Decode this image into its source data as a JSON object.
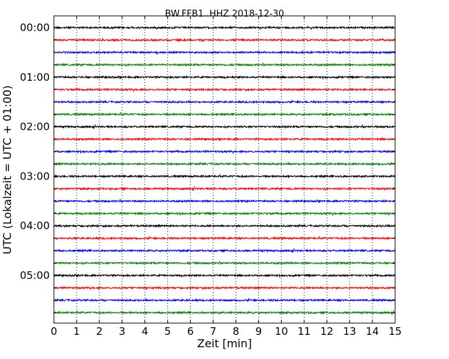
{
  "chart_data": {
    "type": "line",
    "title": "BW.FFB1..HHZ 2018-12-30",
    "xlabel": "Zeit  [min]",
    "ylabel": "UTC (Lokalzeit = UTC + 01:00)",
    "xlim": [
      0,
      15
    ],
    "x_ticks": [
      "0",
      "1",
      "2",
      "3",
      "4",
      "5",
      "6",
      "7",
      "8",
      "9",
      "10",
      "11",
      "12",
      "13",
      "14",
      "15"
    ],
    "y_tick_labels": [
      "00:00",
      "01:00",
      "02:00",
      "03:00",
      "04:00",
      "05:00"
    ],
    "grid": "vertical dotted at each minute",
    "trace_colors": [
      "#000000",
      "#ff0000",
      "#0000ff",
      "#008000"
    ],
    "trace_interval_minutes": 15,
    "series": [
      {
        "start": "00:00"
      },
      {
        "start": "00:15"
      },
      {
        "start": "00:30"
      },
      {
        "start": "00:45"
      },
      {
        "start": "01:00"
      },
      {
        "start": "01:15"
      },
      {
        "start": "01:30"
      },
      {
        "start": "01:45"
      },
      {
        "start": "02:00"
      },
      {
        "start": "02:15"
      },
      {
        "start": "02:30"
      },
      {
        "start": "02:45"
      },
      {
        "start": "03:00"
      },
      {
        "start": "03:15"
      },
      {
        "start": "03:30"
      },
      {
        "start": "03:45"
      },
      {
        "start": "04:00"
      },
      {
        "start": "04:15"
      },
      {
        "start": "04:30"
      },
      {
        "start": "04:45"
      },
      {
        "start": "05:00"
      },
      {
        "start": "05:15"
      },
      {
        "start": "05:30"
      },
      {
        "start": "05:45"
      }
    ]
  }
}
